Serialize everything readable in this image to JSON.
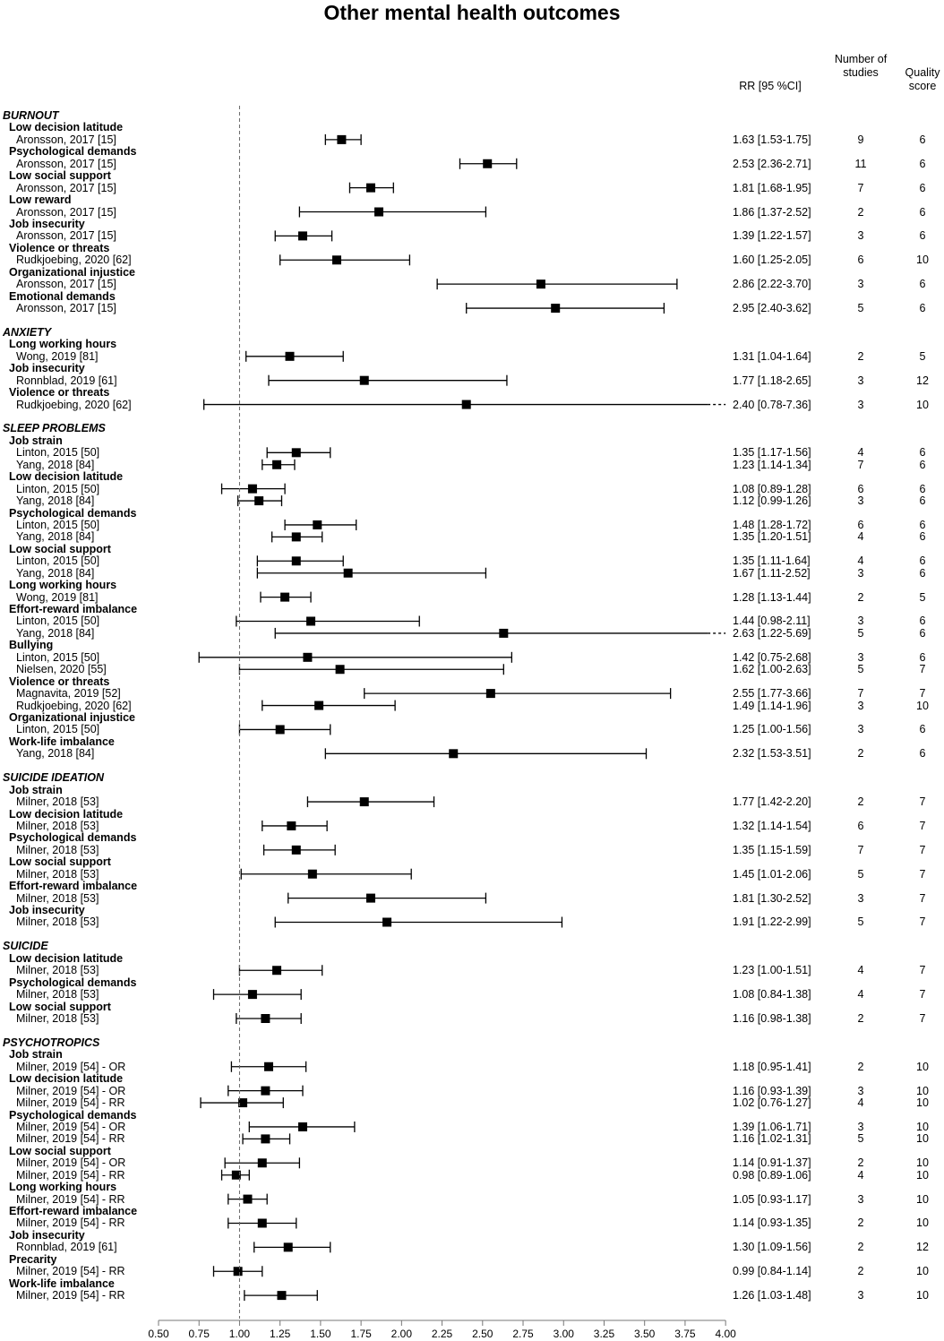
{
  "title": "Other mental health outcomes",
  "headers": {
    "estimate": "RR [95 %CI]",
    "n_studies": "Number of studies",
    "quality": "Quality score"
  },
  "chart_data": {
    "type": "forest",
    "title": "Other mental health outcomes",
    "xlim": [
      0.5,
      4.0
    ],
    "reference_line": 1.0,
    "x_ticks": [
      "0.50",
      "0.75",
      "1.00",
      "1.25",
      "1.50",
      "1.75",
      "2.00",
      "2.25",
      "2.50",
      "2.75",
      "3.00",
      "3.25",
      "3.50",
      "3.75",
      "4.00"
    ],
    "groups": [
      {
        "name": "BURNOUT",
        "items": [
          {
            "label": "Low decision latitude",
            "studies": [
              {
                "study": "Aronsson, 2017 [15]",
                "est": "1.63 [1.53-1.75]",
                "n": "9",
                "q": "6"
              }
            ]
          },
          {
            "label": "Psychological demands",
            "studies": [
              {
                "study": "Aronsson, 2017 [15]",
                "est": "2.53 [2.36-2.71]",
                "n": "11",
                "q": "6"
              }
            ]
          },
          {
            "label": "Low social support",
            "studies": [
              {
                "study": "Aronsson, 2017 [15]",
                "est": "1.81 [1.68-1.95]",
                "n": "7",
                "q": "6"
              }
            ]
          },
          {
            "label": "Low reward",
            "studies": [
              {
                "study": "Aronsson, 2017 [15]",
                "est": "1.86 [1.37-2.52]",
                "n": "2",
                "q": "6"
              }
            ]
          },
          {
            "label": "Job insecurity",
            "studies": [
              {
                "study": "Aronsson, 2017 [15]",
                "est": "1.39 [1.22-1.57]",
                "n": "3",
                "q": "6"
              }
            ]
          },
          {
            "label": "Violence or threats",
            "studies": [
              {
                "study": "Rudkjoebing, 2020 [62]",
                "est": "1.60 [1.25-2.05]",
                "n": "6",
                "q": "10"
              }
            ]
          },
          {
            "label": "Organizational injustice",
            "studies": [
              {
                "study": "Aronsson, 2017 [15]",
                "est": "2.86 [2.22-3.70]",
                "n": "3",
                "q": "6"
              }
            ]
          },
          {
            "label": "Emotional demands",
            "studies": [
              {
                "study": "Aronsson, 2017 [15]",
                "est": "2.95 [2.40-3.62]",
                "n": "5",
                "q": "6"
              }
            ]
          }
        ]
      },
      {
        "name": "ANXIETY",
        "items": [
          {
            "label": "Long working hours",
            "studies": [
              {
                "study": "Wong, 2019 [81]",
                "est": "1.31 [1.04-1.64]",
                "n": "2",
                "q": "5"
              }
            ]
          },
          {
            "label": "Job insecurity",
            "studies": [
              {
                "study": "Ronnblad, 2019 [61]",
                "est": "1.77 [1.18-2.65]",
                "n": "3",
                "q": "12"
              }
            ]
          },
          {
            "label": "Violence or threats",
            "studies": [
              {
                "study": "Rudkjoebing, 2020 [62]",
                "est": "2.40 [0.78-7.36]",
                "n": "3",
                "q": "10"
              }
            ]
          }
        ]
      },
      {
        "name": "SLEEP PROBLEMS",
        "items": [
          {
            "label": "Job strain",
            "studies": [
              {
                "study": "Linton, 2015 [50]",
                "est": "1.35 [1.17-1.56]",
                "n": "4",
                "q": "6"
              },
              {
                "study": "Yang, 2018 [84]",
                "est": "1.23 [1.14-1.34]",
                "n": "7",
                "q": "6"
              }
            ]
          },
          {
            "label": "Low decision latitude",
            "studies": [
              {
                "study": "Linton, 2015 [50]",
                "est": "1.08 [0.89-1.28]",
                "n": "6",
                "q": "6"
              },
              {
                "study": "Yang, 2018 [84]",
                "est": "1.12 [0.99-1.26]",
                "n": "3",
                "q": "6"
              }
            ]
          },
          {
            "label": "Psychological demands",
            "studies": [
              {
                "study": "Linton, 2015 [50]",
                "est": "1.48 [1.28-1.72]",
                "n": "6",
                "q": "6"
              },
              {
                "study": "Yang, 2018 [84]",
                "est": "1.35 [1.20-1.51]",
                "n": "4",
                "q": "6"
              }
            ]
          },
          {
            "label": "Low social support",
            "studies": [
              {
                "study": "Linton, 2015 [50]",
                "est": "1.35 [1.11-1.64]",
                "n": "4",
                "q": "6"
              },
              {
                "study": "Yang, 2018 [84]",
                "est": "1.67 [1.11-2.52]",
                "n": "3",
                "q": "6"
              }
            ]
          },
          {
            "label": "Long working hours",
            "studies": [
              {
                "study": "Wong, 2019 [81]",
                "est": "1.28 [1.13-1.44]",
                "n": "2",
                "q": "5"
              }
            ]
          },
          {
            "label": "Effort-reward imbalance",
            "studies": [
              {
                "study": "Linton, 2015 [50]",
                "est": "1.44 [0.98-2.11]",
                "n": "3",
                "q": "6"
              },
              {
                "study": "Yang, 2018 [84]",
                "est": "2.63 [1.22-5.69]",
                "n": "5",
                "q": "6"
              }
            ]
          },
          {
            "label": "Bullying",
            "studies": [
              {
                "study": "Linton, 2015 [50]",
                "est": "1.42 [0.75-2.68]",
                "n": "3",
                "q": "6"
              },
              {
                "study": "Nielsen, 2020 [55]",
                "est": "1.62 [1.00-2.63]",
                "n": "5",
                "q": "7"
              }
            ]
          },
          {
            "label": "Violence or threats",
            "studies": [
              {
                "study": "Magnavita, 2019 [52]",
                "est": "2.55 [1.77-3.66]",
                "n": "7",
                "q": "7"
              },
              {
                "study": "Rudkjoebing, 2020 [62]",
                "est": "1.49 [1.14-1.96]",
                "n": "3",
                "q": "10"
              }
            ]
          },
          {
            "label": "Organizational injustice",
            "studies": [
              {
                "study": "Linton, 2015 [50]",
                "est": "1.25 [1.00-1.56]",
                "n": "3",
                "q": "6"
              }
            ]
          },
          {
            "label": "Work-life imbalance",
            "studies": [
              {
                "study": "Yang, 2018 [84]",
                "est": "2.32 [1.53-3.51]",
                "n": "2",
                "q": "6"
              }
            ]
          }
        ]
      },
      {
        "name": "SUICIDE IDEATION",
        "items": [
          {
            "label": "Job strain",
            "studies": [
              {
                "study": "Milner, 2018 [53]",
                "est": "1.77 [1.42-2.20]",
                "n": "2",
                "q": "7"
              }
            ]
          },
          {
            "label": "Low decision latitude",
            "studies": [
              {
                "study": "Milner, 2018 [53]",
                "est": "1.32 [1.14-1.54]",
                "n": "6",
                "q": "7"
              }
            ]
          },
          {
            "label": "Psychological demands",
            "studies": [
              {
                "study": "Milner, 2018 [53]",
                "est": "1.35 [1.15-1.59]",
                "n": "7",
                "q": "7"
              }
            ]
          },
          {
            "label": "Low social support",
            "studies": [
              {
                "study": "Milner, 2018 [53]",
                "est": "1.45 [1.01-2.06]",
                "n": "5",
                "q": "7"
              }
            ]
          },
          {
            "label": "Effort-reward imbalance",
            "studies": [
              {
                "study": "Milner, 2018 [53]",
                "est": "1.81 [1.30-2.52]",
                "n": "3",
                "q": "7"
              }
            ]
          },
          {
            "label": "Job insecurity",
            "studies": [
              {
                "study": "Milner, 2018 [53]",
                "est": "1.91 [1.22-2.99]",
                "n": "5",
                "q": "7"
              }
            ]
          }
        ]
      },
      {
        "name": "SUICIDE",
        "items": [
          {
            "label": "Low decision latitude",
            "studies": [
              {
                "study": "Milner, 2018 [53]",
                "est": "1.23 [1.00-1.51]",
                "n": "4",
                "q": "7"
              }
            ]
          },
          {
            "label": "Psychological demands",
            "studies": [
              {
                "study": "Milner, 2018 [53]",
                "est": "1.08 [0.84-1.38]",
                "n": "4",
                "q": "7"
              }
            ]
          },
          {
            "label": "Low social support",
            "studies": [
              {
                "study": "Milner, 2018 [53]",
                "est": "1.16 [0.98-1.38]",
                "n": "2",
                "q": "7"
              }
            ]
          }
        ]
      },
      {
        "name": "PSYCHOTROPICS",
        "items": [
          {
            "label": "Job strain",
            "studies": [
              {
                "study": "Milner, 2019 [54] - OR",
                "est": "1.18 [0.95-1.41]",
                "n": "2",
                "q": "10"
              }
            ]
          },
          {
            "label": "Low decision latitude",
            "studies": [
              {
                "study": "Milner, 2019 [54] - OR",
                "est": "1.16 [0.93-1.39]",
                "n": "3",
                "q": "10"
              },
              {
                "study": "Milner, 2019 [54] - RR",
                "est": "1.02 [0.76-1.27]",
                "n": "4",
                "q": "10"
              }
            ]
          },
          {
            "label": "Psychological demands",
            "studies": [
              {
                "study": "Milner, 2019 [54] - OR",
                "est": "1.39 [1.06-1.71]",
                "n": "3",
                "q": "10"
              },
              {
                "study": "Milner, 2019 [54] - RR",
                "est": "1.16 [1.02-1.31]",
                "n": "5",
                "q": "10"
              }
            ]
          },
          {
            "label": "Low social support",
            "studies": [
              {
                "study": "Milner, 2019 [54] - OR",
                "est": "1.14 [0.91-1.37]",
                "n": "2",
                "q": "10"
              },
              {
                "study": "Milner, 2019 [54] - RR",
                "est": "0.98 [0.89-1.06]",
                "n": "4",
                "q": "10"
              }
            ]
          },
          {
            "label": "Long working hours",
            "studies": [
              {
                "study": "Milner, 2019 [54] - RR",
                "est": "1.05 [0.93-1.17]",
                "n": "3",
                "q": "10"
              }
            ]
          },
          {
            "label": "Effort-reward imbalance",
            "studies": [
              {
                "study": "Milner, 2019 [54] - RR",
                "est": "1.14 [0.93-1.35]",
                "n": "2",
                "q": "10"
              }
            ]
          },
          {
            "label": "Job insecurity",
            "studies": [
              {
                "study": "Ronnblad, 2019 [61]",
                "est": "1.30 [1.09-1.56]",
                "n": "2",
                "q": "12"
              }
            ]
          },
          {
            "label": "Precarity",
            "studies": [
              {
                "study": "Milner, 2019 [54] - RR",
                "est": "0.99 [0.84-1.14]",
                "n": "2",
                "q": "10"
              }
            ]
          },
          {
            "label": "Work-life imbalance",
            "studies": [
              {
                "study": "Milner, 2019 [54] - RR",
                "est": "1.26 [1.03-1.48]",
                "n": "3",
                "q": "10"
              }
            ]
          }
        ]
      }
    ]
  }
}
